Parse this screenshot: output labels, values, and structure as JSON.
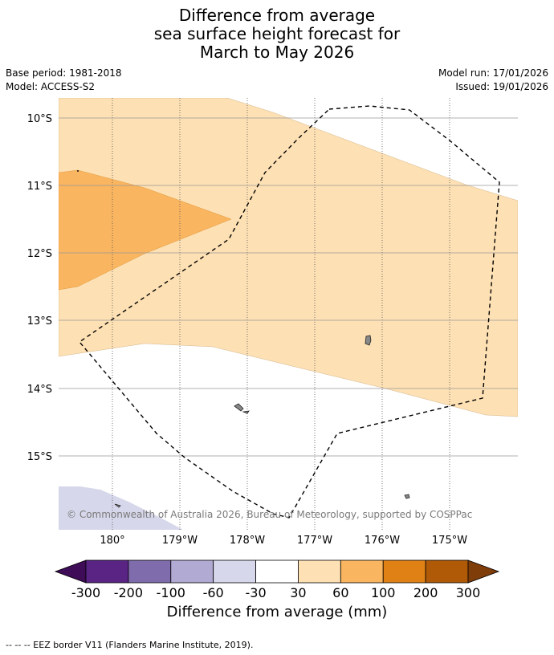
{
  "title": {
    "line1": "Difference from average",
    "line2": "sea surface height forecast for",
    "line3": "March to May 2026"
  },
  "meta": {
    "base_period": "Base period: 1981-2018",
    "model": "Model: ACCESS-S2",
    "model_run": "Model run: 17/01/2026",
    "issued": "Issued: 19/01/2026"
  },
  "map": {
    "lat_labels": [
      "10°S",
      "11°S",
      "12°S",
      "13°S",
      "14°S",
      "15°S"
    ],
    "lon_labels": [
      "180°",
      "179°W",
      "178°W",
      "177°W",
      "176°W",
      "175°W"
    ],
    "copyright": "© Commonwealth of Australia 2026, Bureau of Meteorology, supported by COSPPac",
    "colors": {
      "band_30_60": "#fde0b3",
      "band_60_100": "#fab560",
      "band_neg_60_30": "#d6d7ea",
      "land": "#888888",
      "eez": "#000000"
    }
  },
  "colorbar": {
    "labels": [
      "-300",
      "-200",
      "-100",
      "-60",
      "-30",
      "30",
      "60",
      "100",
      "200",
      "300"
    ],
    "colors": [
      "#3f0d57",
      "#5a2485",
      "#7f6cac",
      "#b1aad3",
      "#d6d7ea",
      "#ffffff",
      "#fde0b3",
      "#fab560",
      "#e08116",
      "#b05a07",
      "#7f3d0a"
    ],
    "title": "Difference from average (mm)"
  },
  "footer": "--  --  -- EEZ border V11 (Flanders Marine Institute, 2019)."
}
